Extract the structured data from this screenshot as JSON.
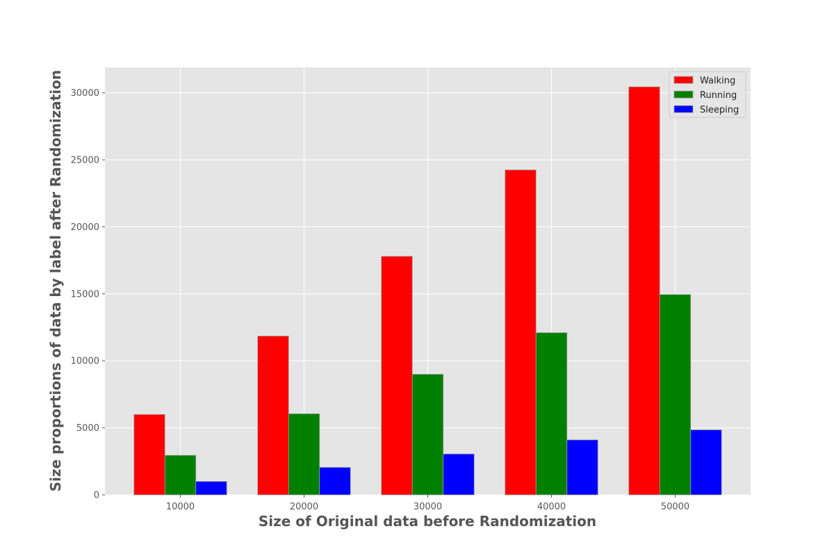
{
  "chart_data": {
    "type": "bar",
    "title": "",
    "xlabel": "Size of Original data before Randomization",
    "ylabel": "Size proportions of data by label after Randomization",
    "categories": [
      "10000",
      "20000",
      "30000",
      "40000",
      "50000"
    ],
    "series": [
      {
        "name": "Walking",
        "color": "#ff0000",
        "values": [
          6000,
          11850,
          17800,
          24250,
          30450
        ]
      },
      {
        "name": "Running",
        "color": "#008000",
        "values": [
          2950,
          6050,
          9000,
          12100,
          14950
        ]
      },
      {
        "name": "Sleeping",
        "color": "#0000ff",
        "values": [
          1000,
          2050,
          3050,
          4100,
          4850
        ]
      }
    ],
    "ylim": [
      0,
      31900
    ],
    "yticks": [
      0,
      5000,
      10000,
      15000,
      20000,
      25000,
      30000
    ],
    "grid": true,
    "legend": "top-right",
    "colors": {
      "plot_background": "#e5e5e5",
      "grid": "#ffffff",
      "text": "#555555"
    }
  }
}
